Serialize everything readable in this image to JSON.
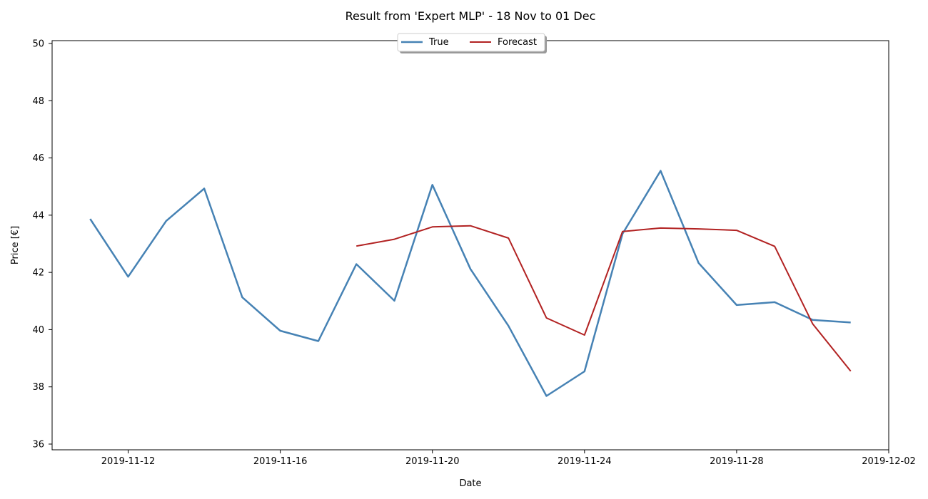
{
  "chart_data": {
    "type": "line",
    "title": "Result from 'Expert MLP' - 18 Nov to 01 Dec",
    "xlabel": "Date",
    "ylabel": "Price [€]",
    "xlim": [
      "2019-11-10",
      "2019-12-02"
    ],
    "ylim": [
      35.8,
      50.1
    ],
    "x_ticks": [
      "2019-11-12",
      "2019-11-16",
      "2019-11-20",
      "2019-11-24",
      "2019-11-28",
      "2019-12-02"
    ],
    "y_ticks": [
      36,
      38,
      40,
      42,
      44,
      46,
      48,
      50
    ],
    "grid": false,
    "legend": {
      "placement": "top-center",
      "entries": [
        "True",
        "Forecast"
      ]
    },
    "series": [
      {
        "name": "True",
        "color": "#4682b4",
        "x": [
          "2019-11-11",
          "2019-11-12",
          "2019-11-13",
          "2019-11-14",
          "2019-11-15",
          "2019-11-16",
          "2019-11-17",
          "2019-11-18",
          "2019-11-19",
          "2019-11-20",
          "2019-11-21",
          "2019-11-22",
          "2019-11-23",
          "2019-11-24",
          "2019-11-25",
          "2019-11-26",
          "2019-11-27",
          "2019-11-28",
          "2019-11-29",
          "2019-11-30",
          "2019-12-01"
        ],
        "values": [
          43.87,
          41.85,
          43.8,
          44.93,
          41.13,
          39.96,
          39.6,
          42.29,
          41.01,
          45.06,
          42.12,
          40.13,
          37.68,
          38.54,
          43.35,
          45.55,
          42.33,
          40.86,
          40.96,
          40.34,
          40.25
        ]
      },
      {
        "name": "Forecast",
        "color": "#b22222",
        "x": [
          "2019-11-18",
          "2019-11-19",
          "2019-11-20",
          "2019-11-21",
          "2019-11-22",
          "2019-11-23",
          "2019-11-24",
          "2019-11-25",
          "2019-11-26",
          "2019-11-27",
          "2019-11-28",
          "2019-11-29",
          "2019-11-30",
          "2019-12-01"
        ],
        "values": [
          42.92,
          43.16,
          43.59,
          43.63,
          43.2,
          40.41,
          39.81,
          43.43,
          43.55,
          43.52,
          43.47,
          42.91,
          40.2,
          38.55
        ]
      }
    ]
  }
}
